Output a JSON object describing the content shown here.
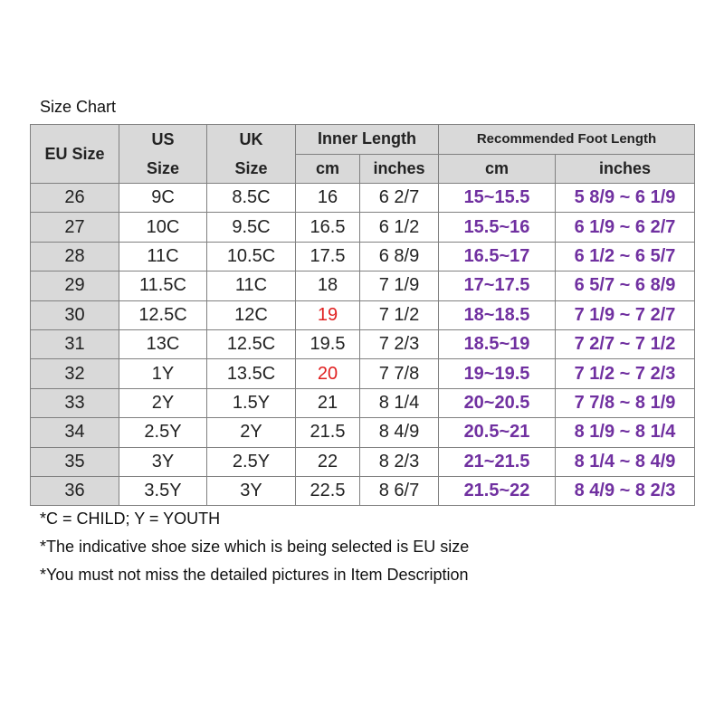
{
  "title": "Size Chart",
  "table": {
    "headers": {
      "eu": "EU Size",
      "us": [
        "US",
        "Size"
      ],
      "uk": [
        "UK",
        "Size"
      ],
      "inner": "Inner Length",
      "inner_cm": "cm",
      "inner_in": "inches",
      "rec": "Recommended Foot Length",
      "rec_cm": "cm",
      "rec_in": "inches"
    },
    "rows": [
      [
        "26",
        "9C",
        "8.5C",
        "16",
        "6 2/7",
        "15~15.5",
        "5 8/9 ~ 6 1/9"
      ],
      [
        "27",
        "10C",
        "9.5C",
        "16.5",
        "6 1/2",
        "15.5~16",
        "6 1/9 ~ 6 2/7"
      ],
      [
        "28",
        "11C",
        "10.5C",
        "17.5",
        "6 8/9",
        "16.5~17",
        "6 1/2 ~ 6 5/7"
      ],
      [
        "29",
        "11.5C",
        "11C",
        "18",
        "7 1/9",
        "17~17.5",
        "6 5/7 ~ 6 8/9"
      ],
      [
        "30",
        "12.5C",
        "12C",
        "19",
        "7 1/2",
        "18~18.5",
        "7 1/9 ~ 7 2/7"
      ],
      [
        "31",
        "13C",
        "12.5C",
        "19.5",
        "7 2/3",
        "18.5~19",
        "7 2/7 ~ 7 1/2"
      ],
      [
        "32",
        "1Y",
        "13.5C",
        "20",
        "7 7/8",
        "19~19.5",
        "7 1/2 ~ 7 2/3"
      ],
      [
        "33",
        "2Y",
        "1.5Y",
        "21",
        "8 1/4",
        "20~20.5",
        "7 7/8 ~ 8 1/9"
      ],
      [
        "34",
        "2.5Y",
        "2Y",
        "21.5",
        "8 4/9",
        "20.5~21",
        "8 1/9 ~ 8 1/4"
      ],
      [
        "35",
        "3Y",
        "2.5Y",
        "22",
        "8 2/3",
        "21~21.5",
        "8 1/4 ~ 8 4/9"
      ],
      [
        "36",
        "3.5Y",
        "3Y",
        "22.5",
        "8 6/7",
        "21.5~22",
        "8 4/9 ~ 8 2/3"
      ]
    ]
  },
  "notes": [
    "*C = CHILD; Y = YOUTH",
    "*The indicative shoe size which is being selected is EU size",
    "*You must not miss the detailed pictures in Item Description"
  ]
}
